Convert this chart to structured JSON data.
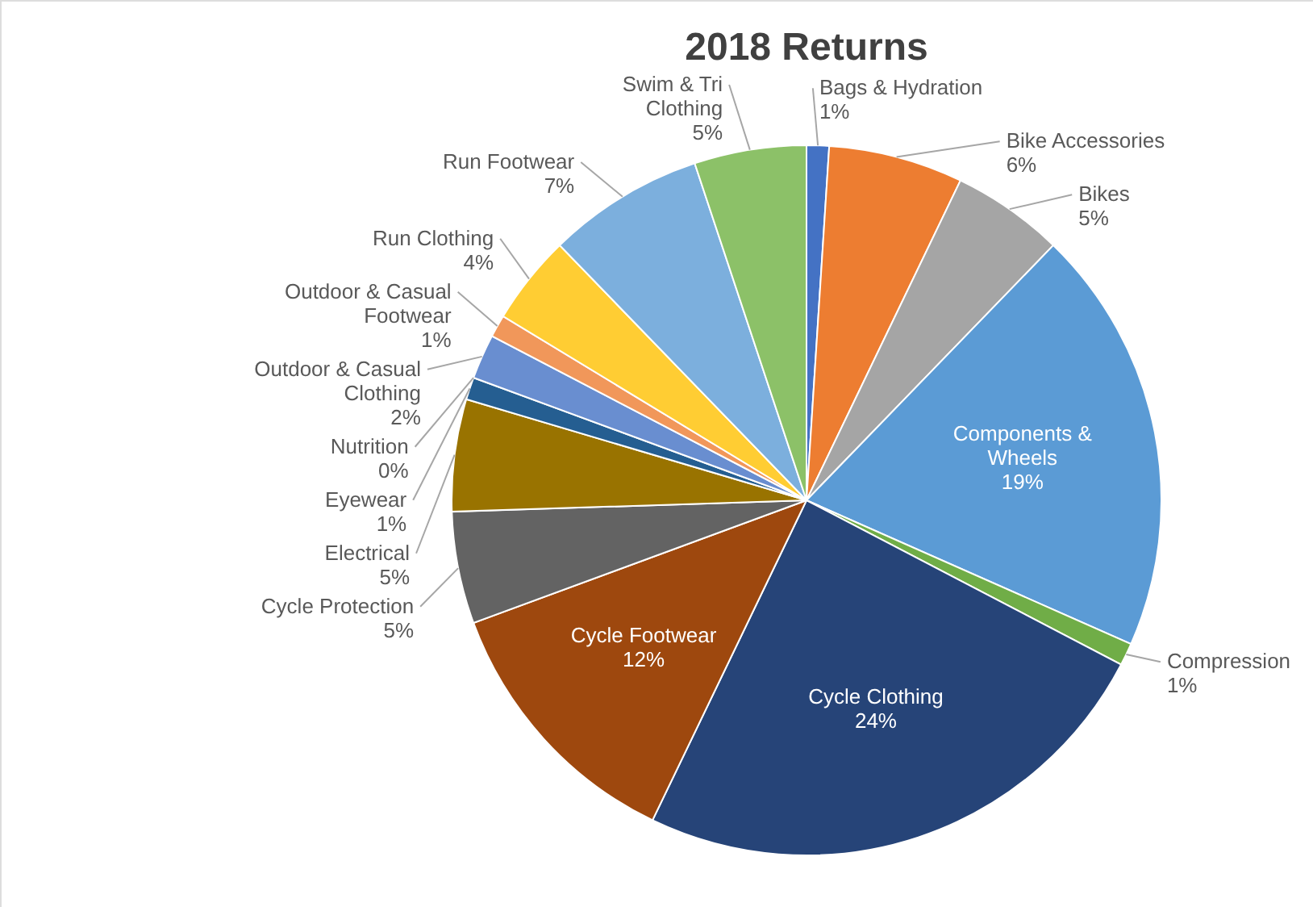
{
  "chart_data": {
    "type": "pie",
    "title": "2018 Returns",
    "categories": [
      "Bags & Hydration",
      "Bike Accessories",
      "Bikes",
      "Components & Wheels",
      "Compression",
      "Cycle Clothing",
      "Cycle Footwear",
      "Cycle Protection",
      "Electrical",
      "Eyewear",
      "Nutrition",
      "Outdoor & Casual Clothing",
      "Outdoor & Casual Footwear",
      "Run Clothing",
      "Run Footwear",
      "Swim & Tri Clothing"
    ],
    "values": [
      1,
      6,
      5,
      19,
      1,
      24,
      12,
      5,
      5,
      1,
      0,
      2,
      1,
      4,
      7,
      5
    ],
    "value_labels": [
      "1%",
      "6%",
      "5%",
      "19%",
      "1%",
      "24%",
      "12%",
      "5%",
      "5%",
      "1%",
      "0%",
      "2%",
      "1%",
      "4%",
      "7%",
      "5%"
    ],
    "colors": [
      "#4472c4",
      "#ed7d31",
      "#a5a5a5",
      "#5b9bd5",
      "#70ad47",
      "#264478",
      "#9e480e",
      "#636363",
      "#997300",
      "#255e91",
      "#43682b",
      "#698ed0",
      "#f1975a",
      "#ffcd33",
      "#7cafdd",
      "#8cc168"
    ]
  }
}
